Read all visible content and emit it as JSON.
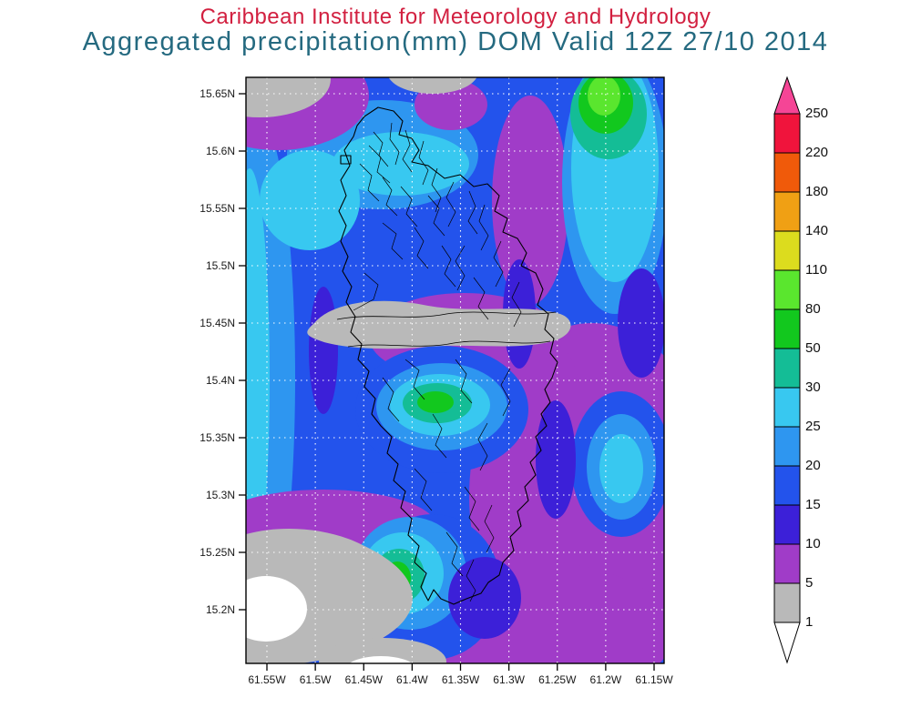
{
  "header": {
    "title": "Caribbean Institute for Meteorology and Hydrology",
    "subtitle": "Aggregated precipitation(mm) DOM Valid 12Z 27/10 2014",
    "title_color": "#d22040",
    "subtitle_color": "#256a80"
  },
  "axes": {
    "lat_ticks": [
      "15.65N",
      "15.6N",
      "15.55N",
      "15.5N",
      "15.45N",
      "15.4N",
      "15.35N",
      "15.3N",
      "15.25N",
      "15.2N"
    ],
    "lon_ticks": [
      "61.55W",
      "61.5W",
      "61.45W",
      "61.4W",
      "61.35W",
      "61.3W",
      "61.25W",
      "61.2W",
      "61.15W"
    ]
  },
  "colorbar": {
    "labels": [
      "250",
      "220",
      "180",
      "140",
      "110",
      "80",
      "50",
      "30",
      "25",
      "20",
      "15",
      "10",
      "5",
      "1"
    ],
    "palette_low_to_high": [
      "#ffffff",
      "#b9b9b9",
      "#a03cc8",
      "#3c20d8",
      "#2353ec",
      "#2e96f0",
      "#38c8f0",
      "#14bd96",
      "#12c81e",
      "#5ae62e",
      "#dcdc1e",
      "#f0a014",
      "#f05a0a",
      "#f0143c",
      "#f54596"
    ]
  },
  "chart_data": {
    "type": "heatmap",
    "title": "Aggregated precipitation(mm) DOM Valid 12Z 27/10 2014",
    "institution": "Caribbean Institute for Meteorology and Hydrology",
    "region": "Dominica (DOM)",
    "valid": "12Z 27/10 2014",
    "units": "mm",
    "x": [
      "61.55W",
      "61.5W",
      "61.45W",
      "61.4W",
      "61.35W",
      "61.3W",
      "61.25W",
      "61.2W",
      "61.15W"
    ],
    "y": [
      "15.65N",
      "15.6N",
      "15.55N",
      "15.5N",
      "15.45N",
      "15.4N",
      "15.35N",
      "15.3N",
      "15.25N",
      "15.2N"
    ],
    "contour_levels_mm": [
      1,
      5,
      10,
      15,
      20,
      25,
      30,
      50,
      80,
      110,
      140,
      180,
      220,
      250
    ],
    "legend_position": "right",
    "grid": true,
    "summary": "Filled precipitation contours over Dominica: mostly 5-30 mm (purple/blue/cyan); 30-110 mm maxima northeast of the island, mid-island south-centre and near the south coast (teal/green); below 5 mm (gray/white) in the northwest corner, in a band across the island centre, and over the southwest corner."
  }
}
